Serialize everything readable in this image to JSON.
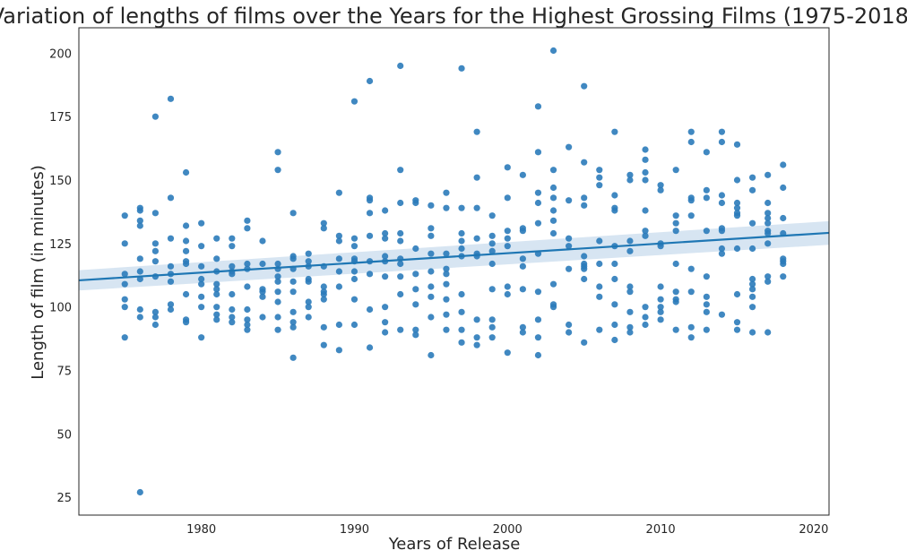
{
  "colors": {
    "points": "#2b7bba",
    "line": "#1f77b4",
    "band": "#c9dcee",
    "frame": "#262626",
    "text": "#262626",
    "background": "#ffffff"
  },
  "chart_data": {
    "type": "scatter",
    "title": "Variation of lengths of films over the Years for the Highest Grossing Films (1975-2018)",
    "xlabel": "Years of Release",
    "ylabel": "Length of film (in minutes)",
    "xlim": [
      1972,
      2021
    ],
    "ylim": [
      18,
      210
    ],
    "x_ticks": [
      1980,
      1990,
      2000,
      2010,
      2020
    ],
    "y_ticks": [
      25,
      50,
      75,
      100,
      125,
      150,
      175,
      200
    ],
    "grid": false,
    "regression": {
      "x_range": [
        1972,
        2021
      ],
      "line_y": [
        110.5,
        129.2
      ],
      "ci_upper": [
        114.5,
        133.8
      ],
      "ci_lower": [
        106.5,
        124.5
      ]
    },
    "points": [
      [
        1975,
        136
      ],
      [
        1975,
        125
      ],
      [
        1975,
        113
      ],
      [
        1975,
        109
      ],
      [
        1975,
        103
      ],
      [
        1975,
        100
      ],
      [
        1975,
        88
      ],
      [
        1976,
        139
      ],
      [
        1976,
        138
      ],
      [
        1976,
        134
      ],
      [
        1976,
        132
      ],
      [
        1976,
        119
      ],
      [
        1976,
        114
      ],
      [
        1976,
        111
      ],
      [
        1976,
        99
      ],
      [
        1976,
        96
      ],
      [
        1976,
        27
      ],
      [
        1977,
        175
      ],
      [
        1977,
        137
      ],
      [
        1977,
        125
      ],
      [
        1977,
        122
      ],
      [
        1977,
        118
      ],
      [
        1977,
        112
      ],
      [
        1977,
        98
      ],
      [
        1977,
        96
      ],
      [
        1977,
        93
      ],
      [
        1978,
        182
      ],
      [
        1978,
        143
      ],
      [
        1978,
        127
      ],
      [
        1978,
        116
      ],
      [
        1978,
        113
      ],
      [
        1978,
        110
      ],
      [
        1978,
        101
      ],
      [
        1978,
        99
      ],
      [
        1979,
        153
      ],
      [
        1979,
        132
      ],
      [
        1979,
        126
      ],
      [
        1979,
        122
      ],
      [
        1979,
        118
      ],
      [
        1979,
        117
      ],
      [
        1979,
        105
      ],
      [
        1979,
        95
      ],
      [
        1979,
        94
      ],
      [
        1980,
        133
      ],
      [
        1980,
        124
      ],
      [
        1980,
        116
      ],
      [
        1980,
        111
      ],
      [
        1980,
        109
      ],
      [
        1980,
        104
      ],
      [
        1980,
        100
      ],
      [
        1980,
        88
      ],
      [
        1981,
        127
      ],
      [
        1981,
        119
      ],
      [
        1981,
        114
      ],
      [
        1981,
        109
      ],
      [
        1981,
        107
      ],
      [
        1981,
        105
      ],
      [
        1981,
        100
      ],
      [
        1981,
        97
      ],
      [
        1981,
        95
      ],
      [
        1982,
        127
      ],
      [
        1982,
        124
      ],
      [
        1982,
        116
      ],
      [
        1982,
        114
      ],
      [
        1982,
        113
      ],
      [
        1982,
        105
      ],
      [
        1982,
        99
      ],
      [
        1982,
        96
      ],
      [
        1982,
        94
      ],
      [
        1983,
        134
      ],
      [
        1983,
        131
      ],
      [
        1983,
        117
      ],
      [
        1983,
        115
      ],
      [
        1983,
        108
      ],
      [
        1983,
        99
      ],
      [
        1983,
        95
      ],
      [
        1983,
        93
      ],
      [
        1983,
        91
      ],
      [
        1984,
        126
      ],
      [
        1984,
        117
      ],
      [
        1984,
        107
      ],
      [
        1984,
        106
      ],
      [
        1984,
        104
      ],
      [
        1984,
        96
      ],
      [
        1985,
        161
      ],
      [
        1985,
        154
      ],
      [
        1985,
        117
      ],
      [
        1985,
        115
      ],
      [
        1985,
        112
      ],
      [
        1985,
        110
      ],
      [
        1985,
        106
      ],
      [
        1985,
        102
      ],
      [
        1985,
        96
      ],
      [
        1985,
        91
      ],
      [
        1986,
        137
      ],
      [
        1986,
        120
      ],
      [
        1986,
        119
      ],
      [
        1986,
        115
      ],
      [
        1986,
        110
      ],
      [
        1986,
        106
      ],
      [
        1986,
        98
      ],
      [
        1986,
        94
      ],
      [
        1986,
        92
      ],
      [
        1986,
        80
      ],
      [
        1987,
        121
      ],
      [
        1987,
        118
      ],
      [
        1987,
        116
      ],
      [
        1987,
        111
      ],
      [
        1987,
        110
      ],
      [
        1987,
        102
      ],
      [
        1987,
        100
      ],
      [
        1987,
        96
      ],
      [
        1988,
        133
      ],
      [
        1988,
        131
      ],
      [
        1988,
        116
      ],
      [
        1988,
        108
      ],
      [
        1988,
        106
      ],
      [
        1988,
        105
      ],
      [
        1988,
        103
      ],
      [
        1988,
        92
      ],
      [
        1988,
        85
      ],
      [
        1989,
        145
      ],
      [
        1989,
        128
      ],
      [
        1989,
        126
      ],
      [
        1989,
        119
      ],
      [
        1989,
        114
      ],
      [
        1989,
        108
      ],
      [
        1989,
        93
      ],
      [
        1989,
        83
      ],
      [
        1990,
        181
      ],
      [
        1990,
        127
      ],
      [
        1990,
        124
      ],
      [
        1990,
        119
      ],
      [
        1990,
        118
      ],
      [
        1990,
        114
      ],
      [
        1990,
        111
      ],
      [
        1990,
        103
      ],
      [
        1990,
        93
      ],
      [
        1991,
        189
      ],
      [
        1991,
        143
      ],
      [
        1991,
        142
      ],
      [
        1991,
        137
      ],
      [
        1991,
        128
      ],
      [
        1991,
        118
      ],
      [
        1991,
        113
      ],
      [
        1991,
        99
      ],
      [
        1991,
        84
      ],
      [
        1992,
        138
      ],
      [
        1992,
        129
      ],
      [
        1992,
        127
      ],
      [
        1992,
        120
      ],
      [
        1992,
        118
      ],
      [
        1992,
        112
      ],
      [
        1992,
        100
      ],
      [
        1992,
        94
      ],
      [
        1992,
        90
      ],
      [
        1993,
        195
      ],
      [
        1993,
        154
      ],
      [
        1993,
        141
      ],
      [
        1993,
        129
      ],
      [
        1993,
        126
      ],
      [
        1993,
        119
      ],
      [
        1993,
        117
      ],
      [
        1993,
        112
      ],
      [
        1993,
        105
      ],
      [
        1993,
        91
      ],
      [
        1994,
        142
      ],
      [
        1994,
        141
      ],
      [
        1994,
        123
      ],
      [
        1994,
        113
      ],
      [
        1994,
        107
      ],
      [
        1994,
        101
      ],
      [
        1994,
        91
      ],
      [
        1994,
        89
      ],
      [
        1995,
        140
      ],
      [
        1995,
        131
      ],
      [
        1995,
        128
      ],
      [
        1995,
        121
      ],
      [
        1995,
        114
      ],
      [
        1995,
        108
      ],
      [
        1995,
        104
      ],
      [
        1995,
        96
      ],
      [
        1995,
        81
      ],
      [
        1996,
        145
      ],
      [
        1996,
        139
      ],
      [
        1996,
        121
      ],
      [
        1996,
        115
      ],
      [
        1996,
        113
      ],
      [
        1996,
        109
      ],
      [
        1996,
        103
      ],
      [
        1996,
        97
      ],
      [
        1996,
        91
      ],
      [
        1997,
        194
      ],
      [
        1997,
        139
      ],
      [
        1997,
        129
      ],
      [
        1997,
        126
      ],
      [
        1997,
        123
      ],
      [
        1997,
        120
      ],
      [
        1997,
        105
      ],
      [
        1997,
        98
      ],
      [
        1997,
        91
      ],
      [
        1997,
        86
      ],
      [
        1998,
        169
      ],
      [
        1998,
        151
      ],
      [
        1998,
        139
      ],
      [
        1998,
        127
      ],
      [
        1998,
        121
      ],
      [
        1998,
        120
      ],
      [
        1998,
        95
      ],
      [
        1998,
        88
      ],
      [
        1998,
        85
      ],
      [
        1999,
        136
      ],
      [
        1999,
        128
      ],
      [
        1999,
        125
      ],
      [
        1999,
        122
      ],
      [
        1999,
        117
      ],
      [
        1999,
        107
      ],
      [
        1999,
        95
      ],
      [
        1999,
        92
      ],
      [
        1999,
        88
      ],
      [
        2000,
        155
      ],
      [
        2000,
        143
      ],
      [
        2000,
        130
      ],
      [
        2000,
        127
      ],
      [
        2000,
        124
      ],
      [
        2000,
        108
      ],
      [
        2000,
        105
      ],
      [
        2000,
        82
      ],
      [
        2001,
        152
      ],
      [
        2001,
        131
      ],
      [
        2001,
        130
      ],
      [
        2001,
        119
      ],
      [
        2001,
        116
      ],
      [
        2001,
        107
      ],
      [
        2001,
        92
      ],
      [
        2001,
        90
      ],
      [
        2002,
        179
      ],
      [
        2002,
        161
      ],
      [
        2002,
        145
      ],
      [
        2002,
        141
      ],
      [
        2002,
        133
      ],
      [
        2002,
        121
      ],
      [
        2002,
        106
      ],
      [
        2002,
        95
      ],
      [
        2002,
        88
      ],
      [
        2002,
        81
      ],
      [
        2003,
        201
      ],
      [
        2003,
        154
      ],
      [
        2003,
        147
      ],
      [
        2003,
        143
      ],
      [
        2003,
        138
      ],
      [
        2003,
        134
      ],
      [
        2003,
        129
      ],
      [
        2003,
        109
      ],
      [
        2003,
        101
      ],
      [
        2003,
        100
      ],
      [
        2004,
        163
      ],
      [
        2004,
        142
      ],
      [
        2004,
        127
      ],
      [
        2004,
        124
      ],
      [
        2004,
        115
      ],
      [
        2004,
        93
      ],
      [
        2004,
        90
      ],
      [
        2005,
        187
      ],
      [
        2005,
        157
      ],
      [
        2005,
        143
      ],
      [
        2005,
        140
      ],
      [
        2005,
        120
      ],
      [
        2005,
        117
      ],
      [
        2005,
        116
      ],
      [
        2005,
        115
      ],
      [
        2005,
        111
      ],
      [
        2005,
        86
      ],
      [
        2006,
        154
      ],
      [
        2006,
        151
      ],
      [
        2006,
        148
      ],
      [
        2006,
        126
      ],
      [
        2006,
        117
      ],
      [
        2006,
        108
      ],
      [
        2006,
        104
      ],
      [
        2006,
        91
      ],
      [
        2007,
        169
      ],
      [
        2007,
        144
      ],
      [
        2007,
        139
      ],
      [
        2007,
        138
      ],
      [
        2007,
        124
      ],
      [
        2007,
        117
      ],
      [
        2007,
        111
      ],
      [
        2007,
        101
      ],
      [
        2007,
        93
      ],
      [
        2007,
        87
      ],
      [
        2008,
        152
      ],
      [
        2008,
        150
      ],
      [
        2008,
        126
      ],
      [
        2008,
        122
      ],
      [
        2008,
        108
      ],
      [
        2008,
        106
      ],
      [
        2008,
        98
      ],
      [
        2008,
        92
      ],
      [
        2008,
        90
      ],
      [
        2009,
        162
      ],
      [
        2009,
        158
      ],
      [
        2009,
        153
      ],
      [
        2009,
        150
      ],
      [
        2009,
        138
      ],
      [
        2009,
        130
      ],
      [
        2009,
        128
      ],
      [
        2009,
        100
      ],
      [
        2009,
        96
      ],
      [
        2009,
        93
      ],
      [
        2010,
        148
      ],
      [
        2010,
        146
      ],
      [
        2010,
        125
      ],
      [
        2010,
        124
      ],
      [
        2010,
        108
      ],
      [
        2010,
        103
      ],
      [
        2010,
        100
      ],
      [
        2010,
        98
      ],
      [
        2010,
        95
      ],
      [
        2011,
        154
      ],
      [
        2011,
        136
      ],
      [
        2011,
        133
      ],
      [
        2011,
        130
      ],
      [
        2011,
        117
      ],
      [
        2011,
        106
      ],
      [
        2011,
        103
      ],
      [
        2011,
        102
      ],
      [
        2011,
        91
      ],
      [
        2012,
        169
      ],
      [
        2012,
        165
      ],
      [
        2012,
        143
      ],
      [
        2012,
        142
      ],
      [
        2012,
        136
      ],
      [
        2012,
        115
      ],
      [
        2012,
        106
      ],
      [
        2012,
        92
      ],
      [
        2012,
        88
      ],
      [
        2013,
        161
      ],
      [
        2013,
        146
      ],
      [
        2013,
        143
      ],
      [
        2013,
        130
      ],
      [
        2013,
        112
      ],
      [
        2013,
        104
      ],
      [
        2013,
        101
      ],
      [
        2013,
        98
      ],
      [
        2013,
        91
      ],
      [
        2014,
        169
      ],
      [
        2014,
        165
      ],
      [
        2014,
        144
      ],
      [
        2014,
        141
      ],
      [
        2014,
        131
      ],
      [
        2014,
        130
      ],
      [
        2014,
        123
      ],
      [
        2014,
        121
      ],
      [
        2014,
        97
      ],
      [
        2015,
        164
      ],
      [
        2015,
        150
      ],
      [
        2015,
        141
      ],
      [
        2015,
        139
      ],
      [
        2015,
        137
      ],
      [
        2015,
        136
      ],
      [
        2015,
        123
      ],
      [
        2015,
        105
      ],
      [
        2015,
        94
      ],
      [
        2015,
        91
      ],
      [
        2016,
        151
      ],
      [
        2016,
        146
      ],
      [
        2016,
        133
      ],
      [
        2016,
        123
      ],
      [
        2016,
        111
      ],
      [
        2016,
        109
      ],
      [
        2016,
        107
      ],
      [
        2016,
        104
      ],
      [
        2016,
        100
      ],
      [
        2016,
        90
      ],
      [
        2017,
        152
      ],
      [
        2017,
        141
      ],
      [
        2017,
        137
      ],
      [
        2017,
        135
      ],
      [
        2017,
        133
      ],
      [
        2017,
        130
      ],
      [
        2017,
        129
      ],
      [
        2017,
        125
      ],
      [
        2017,
        112
      ],
      [
        2017,
        110
      ],
      [
        2017,
        90
      ],
      [
        2018,
        156
      ],
      [
        2018,
        147
      ],
      [
        2018,
        135
      ],
      [
        2018,
        129
      ],
      [
        2018,
        119
      ],
      [
        2018,
        118
      ],
      [
        2018,
        117
      ],
      [
        2018,
        112
      ]
    ]
  }
}
